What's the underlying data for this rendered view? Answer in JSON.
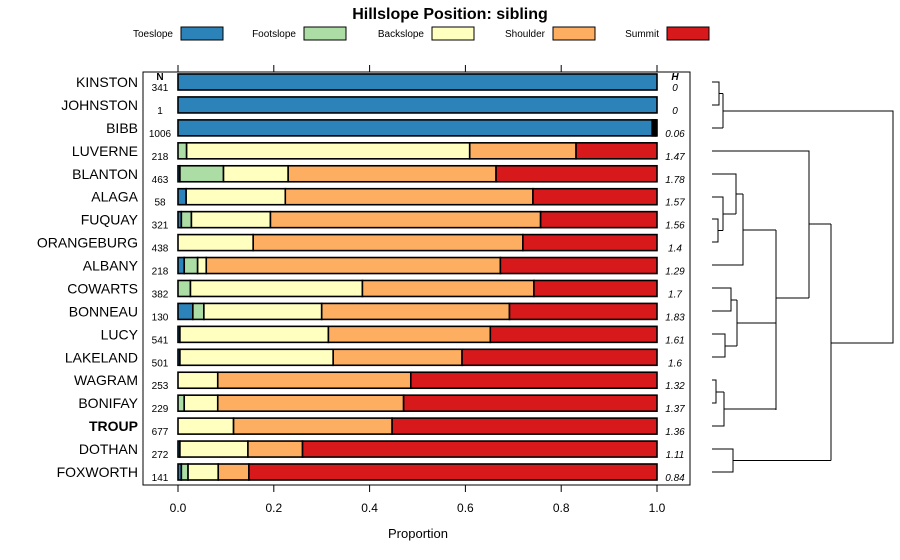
{
  "chart_data": {
    "type": "bar",
    "orientation": "horizontal-stacked",
    "title": "Hillslope Position: sibling",
    "xlabel": "Proportion",
    "xlim": [
      0,
      1
    ],
    "xticks": [
      "0.0",
      "0.2",
      "0.4",
      "0.6",
      "0.8",
      "1.0"
    ],
    "n_header": "N",
    "h_header": "H",
    "legend_position": "top",
    "series": [
      {
        "name": "Toeslope",
        "color": "#2b83ba"
      },
      {
        "name": "Footslope",
        "color": "#abdda4"
      },
      {
        "name": "Backslope",
        "color": "#ffffbf"
      },
      {
        "name": "Shoulder",
        "color": "#fdae61"
      },
      {
        "name": "Summit",
        "color": "#d7191c"
      }
    ],
    "rows": [
      {
        "name": "KINSTON",
        "n": "341",
        "h": "0",
        "bold": false,
        "values": [
          1.0,
          0,
          0,
          0,
          0
        ]
      },
      {
        "name": "JOHNSTON",
        "n": "1",
        "h": "0",
        "bold": false,
        "values": [
          1.0,
          0,
          0,
          0,
          0
        ]
      },
      {
        "name": "BIBB",
        "n": "1006",
        "h": "0.06",
        "bold": false,
        "values": [
          0.99,
          0.003,
          0.003,
          0.002,
          0.002
        ]
      },
      {
        "name": "LUVERNE",
        "n": "218",
        "h": "1.47",
        "bold": false,
        "values": [
          0,
          0.018,
          0.591,
          0.222,
          0.169
        ]
      },
      {
        "name": "BLANTON",
        "n": "463",
        "h": "1.78",
        "bold": false,
        "values": [
          0.004,
          0.091,
          0.135,
          0.434,
          0.336
        ]
      },
      {
        "name": "ALAGA",
        "n": "58",
        "h": "1.57",
        "bold": false,
        "values": [
          0.017,
          0,
          0.207,
          0.517,
          0.259
        ]
      },
      {
        "name": "FUQUAY",
        "n": "321",
        "h": "1.56",
        "bold": false,
        "values": [
          0.007,
          0.021,
          0.165,
          0.564,
          0.243
        ]
      },
      {
        "name": "ORANGEBURG",
        "n": "438",
        "h": "1.4",
        "bold": false,
        "values": [
          0,
          0,
          0.157,
          0.563,
          0.28
        ]
      },
      {
        "name": "ALBANY",
        "n": "218",
        "h": "1.29",
        "bold": false,
        "values": [
          0.013,
          0.028,
          0.018,
          0.614,
          0.327
        ]
      },
      {
        "name": "COWARTS",
        "n": "382",
        "h": "1.7",
        "bold": false,
        "values": [
          0,
          0.026,
          0.359,
          0.358,
          0.257
        ]
      },
      {
        "name": "BONNEAU",
        "n": "130",
        "h": "1.83",
        "bold": false,
        "values": [
          0.031,
          0.023,
          0.246,
          0.392,
          0.308
        ]
      },
      {
        "name": "LUCY",
        "n": "541",
        "h": "1.61",
        "bold": false,
        "values": [
          0.004,
          0,
          0.31,
          0.338,
          0.348
        ]
      },
      {
        "name": "LAKELAND",
        "n": "501",
        "h": "1.6",
        "bold": false,
        "values": [
          0.004,
          0,
          0.32,
          0.269,
          0.407
        ]
      },
      {
        "name": "WAGRAM",
        "n": "253",
        "h": "1.32",
        "bold": false,
        "values": [
          0,
          0,
          0.083,
          0.403,
          0.514
        ]
      },
      {
        "name": "BONIFAY",
        "n": "229",
        "h": "1.37",
        "bold": false,
        "values": [
          0,
          0.013,
          0.07,
          0.388,
          0.529
        ]
      },
      {
        "name": "TROUP",
        "n": "677",
        "h": "1.36",
        "bold": true,
        "values": [
          0,
          0,
          0.116,
          0.331,
          0.553
        ]
      },
      {
        "name": "DOTHAN",
        "n": "272",
        "h": "1.11",
        "bold": false,
        "values": [
          0.004,
          0,
          0.142,
          0.114,
          0.74
        ]
      },
      {
        "name": "FOXWORTH",
        "n": "141",
        "h": "0.84",
        "bold": false,
        "values": [
          0.007,
          0.014,
          0.063,
          0.064,
          0.852
        ]
      }
    ]
  }
}
